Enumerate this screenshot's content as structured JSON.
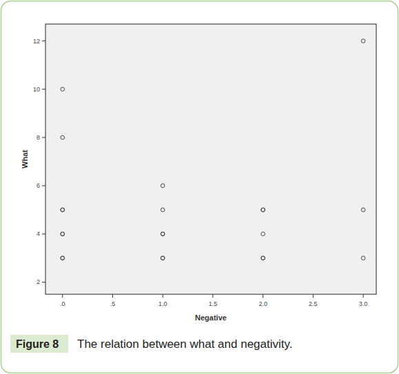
{
  "chart_data": {
    "type": "scatter",
    "x_label": "Negative",
    "y_label": "What",
    "x": [
      0,
      0,
      0,
      0,
      0,
      0,
      0,
      0,
      1,
      1,
      1,
      1,
      1,
      1,
      2,
      2,
      2,
      2,
      2,
      3,
      3,
      3
    ],
    "values": [
      10,
      8,
      5,
      4,
      4,
      3,
      3,
      5,
      6,
      5,
      4,
      4,
      3,
      3,
      5,
      5,
      4,
      3,
      3,
      12,
      5,
      3
    ],
    "color": "#444444",
    "marker": "circle",
    "xlim": [
      -0.17,
      3.13
    ],
    "ylim": [
      1.5,
      12.7
    ],
    "xticks": [
      {
        "value": 0,
        "label": ".0"
      },
      {
        "value": 0.5,
        "label": ".5"
      },
      {
        "value": 1,
        "label": "1.0"
      },
      {
        "value": 1.5,
        "label": "1.5"
      },
      {
        "value": 2,
        "label": "2.0"
      },
      {
        "value": 2.5,
        "label": "2.5"
      },
      {
        "value": 3,
        "label": "3.0"
      }
    ],
    "yticks": [
      2,
      4,
      6,
      8,
      10,
      12
    ],
    "grid": false
  },
  "figure_label": "Figure 8",
  "caption": "The relation between what and negativity."
}
